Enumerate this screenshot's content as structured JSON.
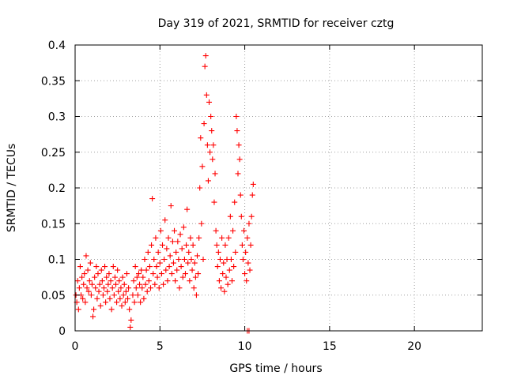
{
  "chart_data": {
    "type": "scatter",
    "title": "Day 319 of 2021, SRMTID for receiver cztg",
    "xlabel": "GPS time / hours",
    "ylabel": "SRMTID / TECUs",
    "xlim": [
      0,
      24
    ],
    "ylim": [
      0,
      0.4
    ],
    "xticks": [
      0,
      5,
      10,
      15,
      20
    ],
    "yticks": [
      0,
      0.05,
      0.1,
      0.15,
      0.2,
      0.25,
      0.3,
      0.35,
      0.4
    ],
    "xtick_labels": [
      "0",
      "5",
      "10",
      "15",
      "20"
    ],
    "ytick_labels": [
      "0",
      "0.05",
      "0.1",
      "0.15",
      "0.2",
      "0.25",
      "0.3",
      "0.35",
      "0.4"
    ],
    "grid": true,
    "marker": "+",
    "color": "#ff0000",
    "series": [
      {
        "name": "SRMTID",
        "points": [
          [
            0.05,
            0.05
          ],
          [
            0.1,
            0.04
          ],
          [
            0.15,
            0.07
          ],
          [
            0.2,
            0.03
          ],
          [
            0.25,
            0.06
          ],
          [
            0.3,
            0.09
          ],
          [
            0.35,
            0.05
          ],
          [
            0.4,
            0.075
          ],
          [
            0.45,
            0.045
          ],
          [
            0.5,
            0.065
          ],
          [
            0.55,
            0.08
          ],
          [
            0.6,
            0.04
          ],
          [
            0.65,
            0.105
          ],
          [
            0.7,
            0.06
          ],
          [
            0.75,
            0.085
          ],
          [
            0.8,
            0.055
          ],
          [
            0.85,
            0.07
          ],
          [
            0.9,
            0.095
          ],
          [
            0.95,
            0.05
          ],
          [
            1.0,
            0.065
          ],
          [
            1.05,
            0.02
          ],
          [
            1.1,
            0.03
          ],
          [
            1.15,
            0.075
          ],
          [
            1.2,
            0.06
          ],
          [
            1.25,
            0.09
          ],
          [
            1.3,
            0.045
          ],
          [
            1.35,
            0.08
          ],
          [
            1.4,
            0.055
          ],
          [
            1.45,
            0.065
          ],
          [
            1.5,
            0.035
          ],
          [
            1.55,
            0.085
          ],
          [
            1.6,
            0.07
          ],
          [
            1.65,
            0.05
          ],
          [
            1.7,
            0.06
          ],
          [
            1.75,
            0.09
          ],
          [
            1.8,
            0.04
          ],
          [
            1.85,
            0.075
          ],
          [
            1.9,
            0.055
          ],
          [
            1.95,
            0.065
          ],
          [
            2.0,
            0.08
          ],
          [
            2.05,
            0.045
          ],
          [
            2.1,
            0.07
          ],
          [
            2.15,
            0.03
          ],
          [
            2.2,
            0.06
          ],
          [
            2.25,
            0.09
          ],
          [
            2.3,
            0.05
          ],
          [
            2.35,
            0.075
          ],
          [
            2.4,
            0.065
          ],
          [
            2.45,
            0.04
          ],
          [
            2.5,
            0.085
          ],
          [
            2.55,
            0.055
          ],
          [
            2.6,
            0.07
          ],
          [
            2.65,
            0.045
          ],
          [
            2.7,
            0.06
          ],
          [
            2.75,
            0.035
          ],
          [
            2.8,
            0.075
          ],
          [
            2.85,
            0.05
          ],
          [
            2.9,
            0.065
          ],
          [
            2.95,
            0.04
          ],
          [
            3.0,
            0.055
          ],
          [
            3.05,
            0.08
          ],
          [
            3.1,
            0.045
          ],
          [
            3.15,
            0.06
          ],
          [
            3.2,
            0.03
          ],
          [
            3.25,
            0.005
          ],
          [
            3.3,
            0.015
          ],
          [
            3.4,
            0.05
          ],
          [
            3.45,
            0.07
          ],
          [
            3.5,
            0.04
          ],
          [
            3.55,
            0.09
          ],
          [
            3.6,
            0.06
          ],
          [
            3.65,
            0.075
          ],
          [
            3.7,
            0.05
          ],
          [
            3.75,
            0.08
          ],
          [
            3.8,
            0.065
          ],
          [
            3.85,
            0.04
          ],
          [
            3.9,
            0.085
          ],
          [
            3.95,
            0.06
          ],
          [
            4.0,
            0.075
          ],
          [
            4.05,
            0.045
          ],
          [
            4.1,
            0.1
          ],
          [
            4.15,
            0.065
          ],
          [
            4.2,
            0.085
          ],
          [
            4.25,
            0.055
          ],
          [
            4.3,
            0.11
          ],
          [
            4.35,
            0.07
          ],
          [
            4.4,
            0.09
          ],
          [
            4.45,
            0.06
          ],
          [
            4.5,
            0.12
          ],
          [
            4.55,
            0.185
          ],
          [
            4.6,
            0.08
          ],
          [
            4.65,
            0.1
          ],
          [
            4.7,
            0.065
          ],
          [
            4.75,
            0.13
          ],
          [
            4.8,
            0.09
          ],
          [
            4.85,
            0.075
          ],
          [
            4.9,
            0.11
          ],
          [
            4.95,
            0.06
          ],
          [
            5.0,
            0.095
          ],
          [
            5.05,
            0.14
          ],
          [
            5.1,
            0.08
          ],
          [
            5.15,
            0.12
          ],
          [
            5.2,
            0.065
          ],
          [
            5.25,
            0.1
          ],
          [
            5.3,
            0.155
          ],
          [
            5.35,
            0.085
          ],
          [
            5.4,
            0.115
          ],
          [
            5.45,
            0.07
          ],
          [
            5.5,
            0.13
          ],
          [
            5.55,
            0.09
          ],
          [
            5.6,
            0.105
          ],
          [
            5.65,
            0.175
          ],
          [
            5.7,
            0.08
          ],
          [
            5.75,
            0.125
          ],
          [
            5.8,
            0.095
          ],
          [
            5.85,
            0.14
          ],
          [
            5.9,
            0.07
          ],
          [
            5.95,
            0.11
          ],
          [
            6.0,
            0.085
          ],
          [
            6.05,
            0.125
          ],
          [
            6.1,
            0.1
          ],
          [
            6.15,
            0.06
          ],
          [
            6.2,
            0.135
          ],
          [
            6.25,
            0.09
          ],
          [
            6.3,
            0.115
          ],
          [
            6.35,
            0.075
          ],
          [
            6.4,
            0.145
          ],
          [
            6.45,
            0.1
          ],
          [
            6.5,
            0.08
          ],
          [
            6.55,
            0.12
          ],
          [
            6.6,
            0.17
          ],
          [
            6.65,
            0.095
          ],
          [
            6.7,
            0.11
          ],
          [
            6.75,
            0.07
          ],
          [
            6.8,
            0.13
          ],
          [
            6.85,
            0.1
          ],
          [
            6.9,
            0.085
          ],
          [
            6.95,
            0.12
          ],
          [
            7.0,
            0.06
          ],
          [
            7.05,
            0.095
          ],
          [
            7.1,
            0.075
          ],
          [
            7.15,
            0.05
          ],
          [
            7.2,
            0.105
          ],
          [
            7.25,
            0.08
          ],
          [
            7.3,
            0.13
          ],
          [
            7.35,
            0.2
          ],
          [
            7.4,
            0.27
          ],
          [
            7.45,
            0.15
          ],
          [
            7.5,
            0.23
          ],
          [
            7.55,
            0.1
          ],
          [
            7.6,
            0.29
          ],
          [
            7.65,
            0.37
          ],
          [
            7.7,
            0.385
          ],
          [
            7.75,
            0.33
          ],
          [
            7.8,
            0.26
          ],
          [
            7.85,
            0.21
          ],
          [
            7.9,
            0.32
          ],
          [
            7.95,
            0.25
          ],
          [
            8.0,
            0.3
          ],
          [
            8.05,
            0.28
          ],
          [
            8.1,
            0.24
          ],
          [
            8.15,
            0.26
          ],
          [
            8.2,
            0.18
          ],
          [
            8.25,
            0.22
          ],
          [
            8.3,
            0.14
          ],
          [
            8.35,
            0.12
          ],
          [
            8.4,
            0.09
          ],
          [
            8.45,
            0.11
          ],
          [
            8.5,
            0.07
          ],
          [
            8.55,
            0.1
          ],
          [
            8.6,
            0.06
          ],
          [
            8.65,
            0.13
          ],
          [
            8.7,
            0.08
          ],
          [
            8.75,
            0.095
          ],
          [
            8.8,
            0.055
          ],
          [
            8.85,
            0.12
          ],
          [
            8.9,
            0.075
          ],
          [
            8.95,
            0.1
          ],
          [
            9.0,
            0.065
          ],
          [
            9.05,
            0.13
          ],
          [
            9.1,
            0.085
          ],
          [
            9.15,
            0.16
          ],
          [
            9.2,
            0.1
          ],
          [
            9.25,
            0.07
          ],
          [
            9.3,
            0.14
          ],
          [
            9.35,
            0.09
          ],
          [
            9.4,
            0.18
          ],
          [
            9.45,
            0.11
          ],
          [
            9.5,
            0.3
          ],
          [
            9.55,
            0.28
          ],
          [
            9.6,
            0.22
          ],
          [
            9.65,
            0.26
          ],
          [
            9.7,
            0.24
          ],
          [
            9.75,
            0.19
          ],
          [
            9.8,
            0.16
          ],
          [
            9.85,
            0.12
          ],
          [
            9.9,
            0.1
          ],
          [
            9.95,
            0.14
          ],
          [
            10.0,
            0.08
          ],
          [
            10.05,
            0.11
          ],
          [
            10.1,
            0.07
          ],
          [
            10.15,
            0.13
          ],
          [
            10.2,
            0.095
          ],
          [
            10.25,
            0.15
          ],
          [
            10.3,
            0.085
          ],
          [
            10.35,
            0.12
          ],
          [
            10.4,
            0.16
          ],
          [
            10.45,
            0.19
          ],
          [
            10.5,
            0.205
          ],
          [
            10.25,
            0.0
          ],
          [
            10.15,
            0.0
          ]
        ]
      }
    ]
  }
}
